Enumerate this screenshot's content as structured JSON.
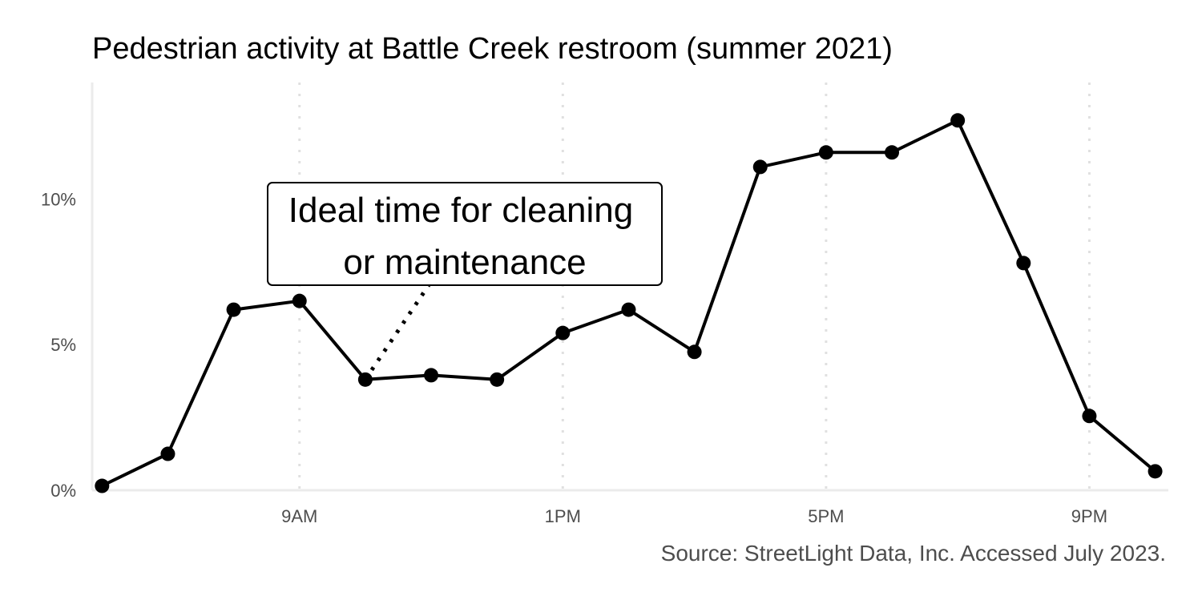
{
  "chart_data": {
    "type": "line",
    "title": "Pedestrian activity at Battle Creek restroom (summer 2021)",
    "caption": "Source: StreetLight Data, Inc. Accessed July 2023.",
    "xlabel": "",
    "ylabel": "",
    "x": [
      6,
      7,
      8,
      9,
      10,
      11,
      12,
      13,
      14,
      15,
      16,
      17,
      18,
      19,
      20,
      21,
      22
    ],
    "values": [
      0.15,
      1.25,
      6.2,
      6.5,
      3.8,
      3.95,
      3.8,
      5.4,
      6.2,
      4.75,
      11.1,
      11.6,
      11.6,
      12.7,
      7.8,
      2.55,
      0.65
    ],
    "xlim": [
      5.85,
      22.2
    ],
    "ylim": [
      0,
      14
    ],
    "x_ticks": [
      {
        "value": 9,
        "label": "9AM"
      },
      {
        "value": 13,
        "label": "1PM"
      },
      {
        "value": 17,
        "label": "5PM"
      },
      {
        "value": 21,
        "label": "9PM"
      }
    ],
    "y_ticks": [
      {
        "value": 0,
        "label": "0%"
      },
      {
        "value": 5,
        "label": "5%"
      },
      {
        "value": 10,
        "label": "10%"
      }
    ],
    "grid": {
      "vertical_major": true,
      "style": "dotted",
      "horizontal": false
    },
    "line_color": "#000000",
    "grid_color": "#ebebeb",
    "annotation": {
      "lines": [
        "Ideal time for cleaning",
        "or maintenance"
      ],
      "target_x": 10,
      "target_y": 3.8
    }
  }
}
